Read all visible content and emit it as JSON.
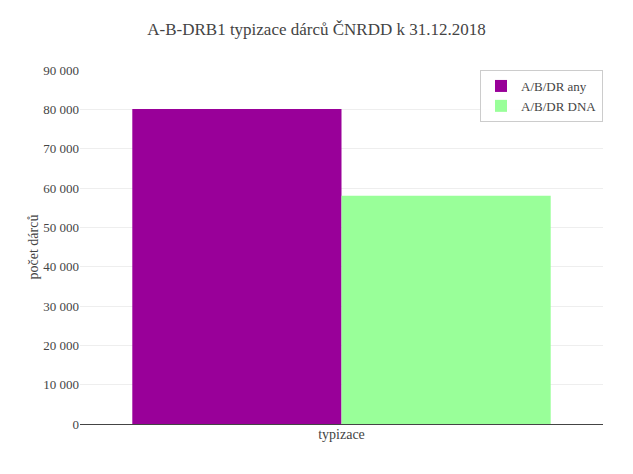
{
  "chart_data": {
    "type": "bar",
    "title": "A-B-DRB1 typizace dárců ČNRDD k 31.12.2018",
    "ylabel": "počet dárců",
    "categories": [
      "typizace"
    ],
    "series": [
      {
        "name": "A/B/DR any",
        "color": "#990099",
        "values": [
          80100
        ]
      },
      {
        "name": "A/B/DR DNA",
        "color": "#99ff99",
        "values": [
          58000
        ]
      }
    ],
    "ylim": [
      0,
      90000
    ],
    "yticks": [
      0,
      {
        "value": 10000,
        "label": "10 000"
      },
      {
        "value": 20000,
        "label": "20 000"
      },
      {
        "value": 30000,
        "label": "30 000"
      },
      {
        "value": 40000,
        "label": "40 000"
      },
      {
        "value": 50000,
        "label": "50 000"
      },
      {
        "value": 60000,
        "label": "60 000"
      },
      {
        "value": 70000,
        "label": "70 000"
      },
      {
        "value": 80000,
        "label": "80 000"
      },
      {
        "value": 90000,
        "label": "90 000"
      }
    ],
    "grid": true,
    "legend": "upper right"
  }
}
